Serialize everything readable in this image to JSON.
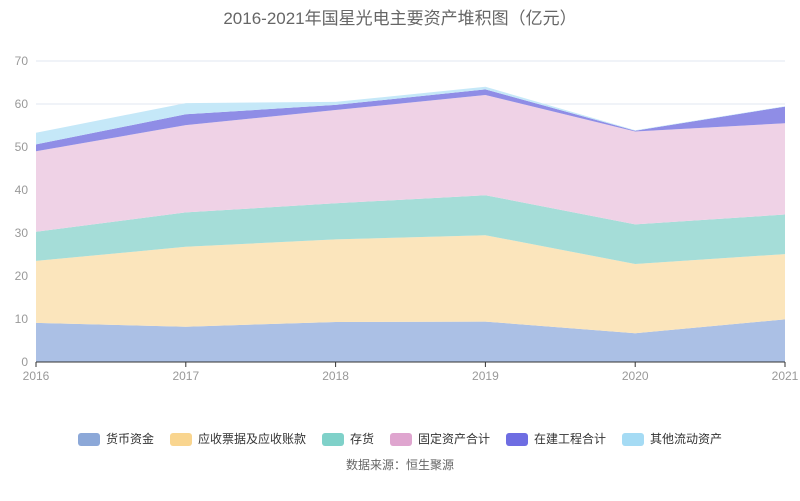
{
  "title": "2016-2021年国星光电主要资产堆积图（亿元）",
  "source": "数据来源：恒生聚源",
  "colors": {
    "title_text": "#666666",
    "axis_label": "#999999",
    "axis_line": "#333333",
    "grid_line": "#E2E7F2",
    "legend_text": "#333333",
    "background": "#FFFFFF"
  },
  "chart_data": {
    "type": "area",
    "stacked": true,
    "title": "2016-2021年国星光电主要资产堆积图（亿元）",
    "xlabel": "",
    "ylabel": "",
    "x": [
      "2016",
      "2017",
      "2018",
      "2019",
      "2020",
      "2021"
    ],
    "ylim": [
      0,
      70
    ],
    "ystep": 10,
    "grid": true,
    "legend_position": "bottom",
    "series": [
      {
        "name": "货币资金",
        "legend_color": "#8CA8D8",
        "fill": "#ABC0E5",
        "values": [
          9.1,
          8.2,
          9.3,
          9.4,
          6.7,
          9.9
        ]
      },
      {
        "name": "应收票据及应收账款",
        "legend_color": "#F9D58F",
        "fill": "#FBE5BC",
        "values": [
          14.4,
          18.6,
          19.2,
          20.1,
          16.1,
          15.2
        ]
      },
      {
        "name": "存货",
        "legend_color": "#7FD1C9",
        "fill": "#A5DDD8",
        "values": [
          6.8,
          8.0,
          8.4,
          9.3,
          9.2,
          9.2
        ]
      },
      {
        "name": "固定资产合计",
        "legend_color": "#DFA5CF",
        "fill": "#EFD2E6",
        "values": [
          18.7,
          20.3,
          21.7,
          23.3,
          21.6,
          21.2
        ]
      },
      {
        "name": "在建工程合计",
        "legend_color": "#6E6DE2",
        "fill": "#8F8DE6",
        "values": [
          1.6,
          2.5,
          1.2,
          1.3,
          0.2,
          3.9
        ]
      },
      {
        "name": "其他流动资产",
        "legend_color": "#A5DBF4",
        "fill": "#C5E8F8",
        "values": [
          2.7,
          2.6,
          0.7,
          0.6,
          0.1,
          0.1
        ]
      }
    ],
    "stacked_totals": [
      53.3,
      60.2,
      60.5,
      64.0,
      53.9,
      59.5
    ]
  }
}
